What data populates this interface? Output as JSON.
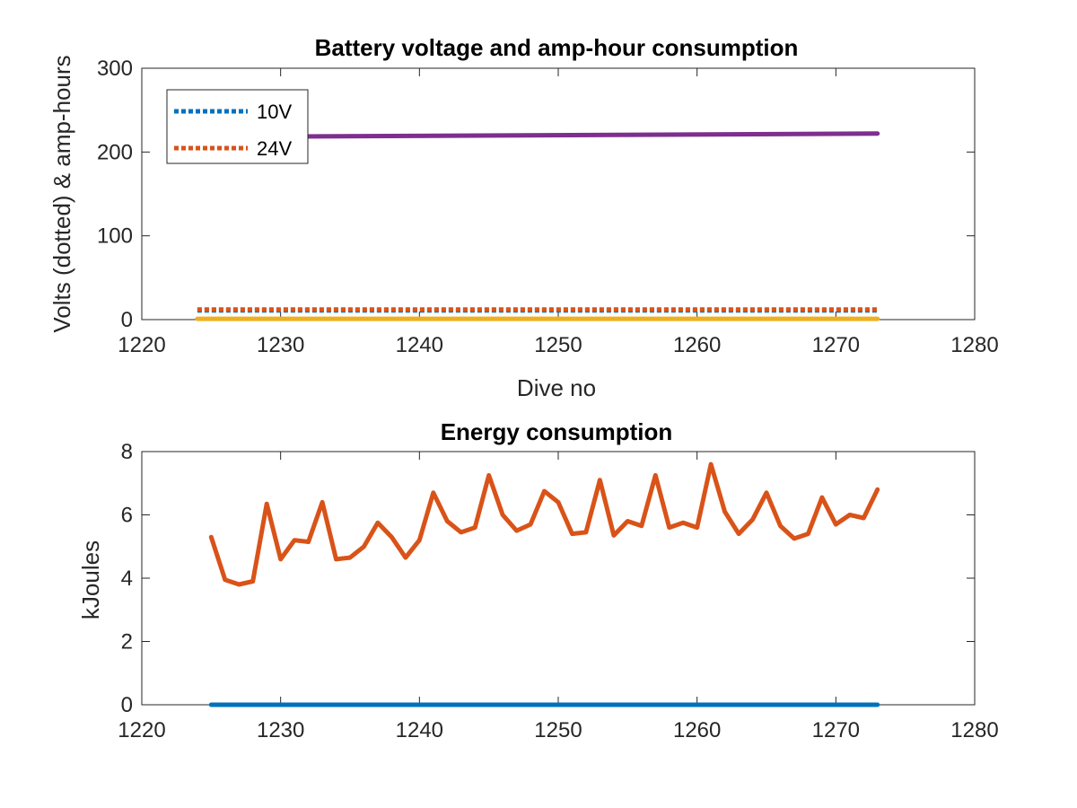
{
  "chart_data": [
    {
      "type": "line",
      "title": "Battery voltage and amp-hour consumption",
      "xlabel": "Dive no",
      "ylabel": "Volts (dotted) & amp-hours",
      "xlim": [
        1220,
        1280
      ],
      "ylim": [
        0,
        300
      ],
      "xticks": [
        "1220",
        "1230",
        "1240",
        "1250",
        "1260",
        "1270",
        "1280"
      ],
      "yticks": [
        "0",
        "100",
        "200",
        "300"
      ],
      "grid": false,
      "legend_position": "top-left",
      "series": [
        {
          "name": "10V",
          "style": "dotted",
          "color": "#0072BD",
          "x": [
            1224,
            1273
          ],
          "y": [
            11,
            11
          ],
          "legend": true
        },
        {
          "name": "24V",
          "style": "dotted",
          "color": "#D95319",
          "x": [
            1224,
            1273
          ],
          "y": [
            12,
            12
          ],
          "legend": true
        },
        {
          "style": "solid",
          "color": "#EDB120",
          "x": [
            1224,
            1273
          ],
          "y": [
            1,
            1
          ]
        },
        {
          "style": "solid",
          "color": "#7E2F8E",
          "x": [
            1224,
            1273
          ],
          "y": [
            218,
            222
          ]
        }
      ]
    },
    {
      "type": "line",
      "title": "Energy consumption",
      "xlabel": "",
      "ylabel": "kJoules",
      "xlim": [
        1220,
        1280
      ],
      "ylim": [
        0,
        8
      ],
      "xticks": [
        "1220",
        "1230",
        "1240",
        "1250",
        "1260",
        "1270",
        "1280"
      ],
      "yticks": [
        "0",
        "2",
        "4",
        "6",
        "8"
      ],
      "grid": false,
      "series": [
        {
          "style": "solid",
          "color": "#0072BD",
          "x": [
            1225,
            1273
          ],
          "y": [
            0,
            0
          ]
        },
        {
          "style": "solid",
          "color": "#D95319",
          "x": [
            1225,
            1226,
            1227,
            1228,
            1229,
            1230,
            1231,
            1232,
            1233,
            1234,
            1235,
            1236,
            1237,
            1238,
            1239,
            1240,
            1241,
            1242,
            1243,
            1244,
            1245,
            1246,
            1247,
            1248,
            1249,
            1250,
            1251,
            1252,
            1253,
            1254,
            1255,
            1256,
            1257,
            1258,
            1259,
            1260,
            1261,
            1262,
            1263,
            1264,
            1265,
            1266,
            1267,
            1268,
            1269,
            1270,
            1271,
            1272,
            1273
          ],
          "y": [
            5.3,
            3.95,
            3.8,
            3.9,
            6.35,
            4.6,
            5.2,
            5.15,
            6.4,
            4.6,
            4.65,
            5.0,
            5.75,
            5.3,
            4.65,
            5.2,
            6.7,
            5.8,
            5.45,
            5.6,
            7.25,
            6.0,
            5.5,
            5.7,
            6.75,
            6.4,
            5.4,
            5.45,
            7.1,
            5.35,
            5.8,
            5.65,
            7.25,
            5.6,
            5.75,
            5.6,
            7.6,
            6.1,
            5.4,
            5.85,
            6.7,
            5.65,
            5.25,
            5.4,
            6.55,
            5.7,
            6.0,
            5.9,
            6.8
          ]
        }
      ]
    }
  ]
}
